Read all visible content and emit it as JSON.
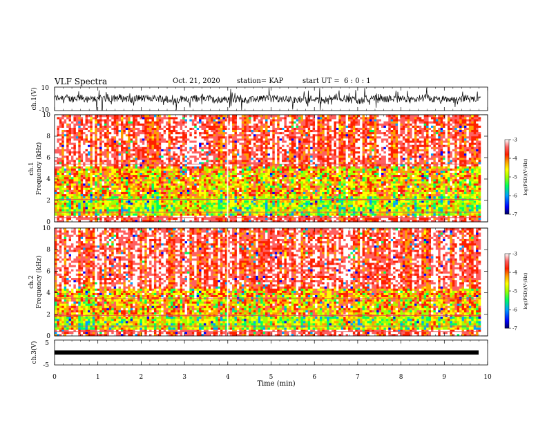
{
  "header": {
    "title": "VLF Spectra",
    "date": "Oct. 21, 2020",
    "station": "station= KAP",
    "start": "start UT =  6 : 0 : 1"
  },
  "chart_data": [
    {
      "type": "line",
      "name": "waveform-ch1",
      "ylabel": "ch.1(V)",
      "ylim": [
        -10,
        10
      ],
      "ytick_labels": [
        "-10",
        "10"
      ],
      "xlim": [
        0,
        10
      ],
      "description_values": "dense noisy voltage trace, mostly between -3 and 5 V"
    },
    {
      "type": "heatmap",
      "name": "spectrogram-ch1",
      "ylabel": "ch.1\nFrequency (kHz)",
      "ylabel_lines": [
        "ch.1",
        "Frequency (kHz)"
      ],
      "ylim": [
        0,
        10
      ],
      "ytick_labels": [
        "0",
        "2",
        "4",
        "6",
        "8",
        "10"
      ],
      "xlim": [
        0,
        10
      ]
    },
    {
      "type": "heatmap",
      "name": "spectrogram-ch2",
      "ylabel_lines": [
        "ch.2",
        "Frequency (kHz)"
      ],
      "ylim": [
        0,
        10
      ],
      "ytick_labels": [
        "0",
        "2",
        "4",
        "6",
        "8",
        "10"
      ],
      "xlim": [
        0,
        10
      ]
    },
    {
      "type": "line",
      "name": "waveform-ch3",
      "ylabel": "ch.3(V)",
      "ylim": [
        -5,
        5
      ],
      "ytick_labels": [
        "-5",
        "5"
      ],
      "xlim": [
        0,
        10
      ]
    }
  ],
  "x_axis": {
    "label": "Time (min)",
    "ticks": [
      0,
      1,
      2,
      3,
      4,
      5,
      6,
      7,
      8,
      9,
      10
    ],
    "tick_labels": [
      "0",
      "1",
      "2",
      "3",
      "4",
      "5",
      "6",
      "7",
      "8",
      "9",
      "10"
    ],
    "data_end": 9.84
  },
  "colorbar": {
    "label": "log(PSD)(V²/Hz)",
    "range": [
      -7,
      -3
    ],
    "tick_labels": [
      "-3",
      "-4",
      "-5",
      "-6",
      "-7"
    ],
    "colors": [
      "#000060",
      "#0000ff",
      "#00a0ff",
      "#00ff60",
      "#a0ff00",
      "#ffff00",
      "#ffa000",
      "#ff2000",
      "#ff6060",
      "#ffffff"
    ]
  }
}
